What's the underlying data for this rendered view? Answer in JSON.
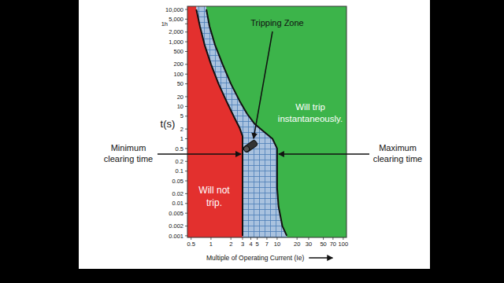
{
  "chart_data": {
    "type": "line",
    "log": true,
    "x_label": "Multiple of Operating Current (Ie)",
    "y_label": "t(s)",
    "xlim": [
      0.44,
      112
    ],
    "ylim": [
      0.00089,
      12500
    ],
    "xticks": [
      0.5,
      1,
      2,
      3,
      4,
      5,
      7,
      10,
      20,
      30,
      50,
      70,
      100
    ],
    "yticks": [
      0.001,
      0.002,
      0.005,
      0.01,
      0.02,
      0.05,
      0.1,
      0.2,
      0.5,
      1,
      2,
      5,
      10,
      20,
      50,
      100,
      200,
      500,
      {
        "value": 1000,
        "label": "1,000"
      },
      {
        "value": 2000,
        "label": "2,000"
      },
      {
        "value": 3600,
        "label": "1h"
      },
      {
        "value": 5000,
        "label": "5,000"
      },
      {
        "value": 10000,
        "label": "10,000"
      }
    ],
    "series": [
      {
        "name": "Minimum clearing time",
        "color": "#111111",
        "x": [
          0.6,
          0.68,
          0.8,
          1.0,
          1.3,
          1.7,
          2.2,
          2.7,
          3.0,
          3.0
        ],
        "values": [
          10000,
          3000,
          800,
          200,
          50,
          15,
          5,
          2.2,
          1.2,
          0.001
        ]
      },
      {
        "name": "Maximum clearing time",
        "color": "#111111",
        "x": [
          0.85,
          0.95,
          1.15,
          1.5,
          2.0,
          2.7,
          3.5,
          4.5,
          6.0,
          8.5,
          10,
          10,
          10.5,
          12,
          14
        ],
        "values": [
          10000,
          3000,
          800,
          200,
          50,
          15,
          6,
          3,
          1.8,
          1.0,
          0.5,
          0.03,
          0.008,
          0.002,
          0.001
        ]
      }
    ],
    "annotations": [
      "Tripping Zone",
      "Will not trip.",
      "Will trip instantaneously."
    ]
  }
}
